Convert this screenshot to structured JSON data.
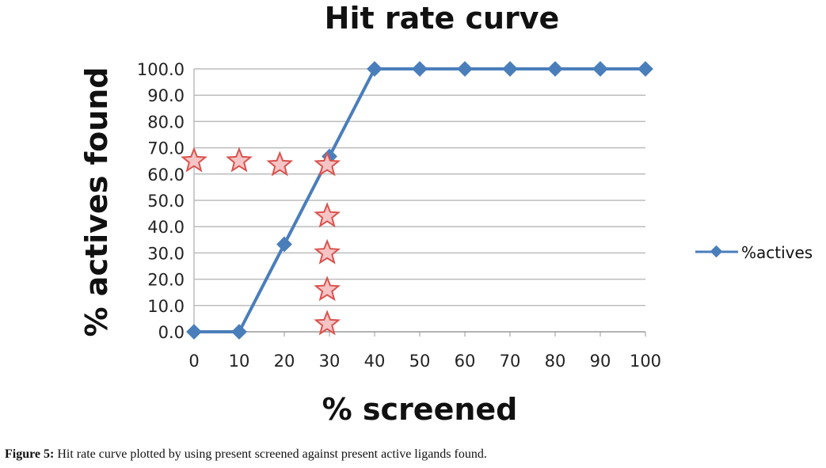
{
  "chart_data": {
    "type": "line",
    "title": "Hit rate curve",
    "xlabel": "% screened",
    "ylabel": "% actives found",
    "categories": [
      "0",
      "10",
      "20",
      "30",
      "40",
      "50",
      "60",
      "70",
      "80",
      "90",
      "100"
    ],
    "series": [
      {
        "name": "%actives",
        "color": "#4a7ebb",
        "marker": "diamond",
        "values": [
          0.0,
          0.0,
          33.3,
          66.7,
          100.0,
          100.0,
          100.0,
          100.0,
          100.0,
          100.0,
          100.0
        ]
      }
    ],
    "annotations_stars": [
      {
        "x": 0,
        "y": 65
      },
      {
        "x": 10,
        "y": 65
      },
      {
        "x": 19,
        "y": 63.5
      },
      {
        "x": 29.5,
        "y": 63.5
      },
      {
        "x": 29.5,
        "y": 44
      },
      {
        "x": 29.5,
        "y": 30
      },
      {
        "x": 29.5,
        "y": 16
      },
      {
        "x": 29.5,
        "y": 3
      }
    ],
    "star_color": "#d9534f",
    "ylim": [
      0,
      100
    ],
    "yticks": [
      "0.0",
      "10.0",
      "20.0",
      "30.0",
      "40.0",
      "50.0",
      "60.0",
      "70.0",
      "80.0",
      "90.0",
      "100.0"
    ],
    "grid": true,
    "legend": "right"
  },
  "caption": {
    "label": "Figure 5:",
    "text": " Hit rate curve plotted by using present screened against present active ligands found."
  }
}
